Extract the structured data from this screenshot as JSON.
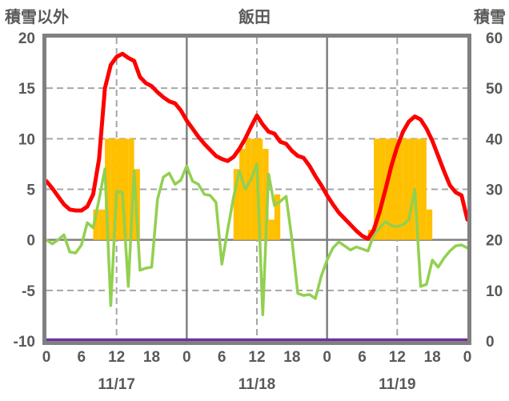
{
  "title": "飯田",
  "left_axis_label": "積雪以外",
  "right_axis_label": "積雪",
  "colors": {
    "temperature_line": "#ff0000",
    "green_line": "#92d050",
    "sunshine_bars": "#ffc000",
    "snow_line": "#7030a0",
    "axis_gray": "#808080",
    "grid_gray": "#a6a6a6",
    "text_gray": "#595959"
  },
  "chart_data": {
    "type": "line+bar",
    "title": "飯田",
    "left_axis": {
      "label": "積雪以外",
      "min": -10,
      "max": 20,
      "ticks": [
        20,
        15,
        10,
        5,
        0,
        -5,
        -10
      ]
    },
    "right_axis": {
      "label": "積雪",
      "min": 0,
      "max": 60,
      "ticks": [
        60,
        50,
        40,
        30,
        20,
        10,
        0
      ]
    },
    "x_axis": {
      "hours_total": 72,
      "hour_ticks_per_day": [
        0,
        6,
        12,
        18
      ],
      "final_tick": 0,
      "day_labels": [
        "11/17",
        "11/18",
        "11/19"
      ],
      "solid_vertical_hours": [
        24,
        48
      ],
      "dashed_vertical_hours": [
        12,
        36,
        60
      ]
    },
    "grid": {
      "horizontal_dashed": [
        15,
        10,
        5,
        -5
      ],
      "horizontal_solid": [
        0
      ]
    },
    "series": [
      {
        "name": "sunshine-bars",
        "type": "bar",
        "axis": "left",
        "color": "#ffc000",
        "values": [
          0,
          0,
          0,
          0,
          0,
          0,
          0,
          0,
          3,
          3,
          10,
          10,
          10,
          10,
          10,
          7,
          0,
          0,
          0,
          0,
          0,
          0,
          0,
          0,
          0,
          0,
          0,
          0,
          0,
          0,
          0,
          0,
          7,
          9,
          10,
          10,
          10,
          9,
          2,
          4.5,
          0,
          0,
          0,
          0,
          0,
          0,
          0,
          0,
          0,
          0,
          0,
          0,
          0,
          0,
          0,
          1,
          10,
          10,
          10,
          10,
          10,
          10,
          10,
          10,
          10,
          3,
          0,
          0,
          0,
          0,
          0,
          0
        ]
      },
      {
        "name": "green-line",
        "type": "line",
        "axis": "left",
        "color": "#92d050",
        "width": 3.5,
        "values": [
          0.0,
          -0.4,
          0.0,
          0.5,
          -1.2,
          -1.3,
          -0.5,
          1.7,
          1.2,
          4.0,
          7.0,
          -6.5,
          4.8,
          4.7,
          -4.6,
          6.8,
          -3.0,
          -2.8,
          -2.7,
          4.0,
          6.2,
          6.6,
          5.5,
          5.9,
          7.3,
          5.8,
          5.5,
          4.5,
          4.4,
          3.7,
          -2.4,
          1.0,
          4.2,
          6.8,
          5.0,
          6.0,
          7.5,
          -7.4,
          6.5,
          3.4,
          3.8,
          4.3,
          0.0,
          -5.3,
          -5.5,
          -5.4,
          -5.8,
          -3.6,
          -2.0,
          -0.8,
          -0.2,
          -0.6,
          -1.0,
          -0.7,
          -0.9,
          -1.1,
          0.5,
          1.2,
          1.8,
          1.4,
          1.3,
          1.5,
          2.0,
          5.0,
          -4.6,
          -4.4,
          -2.0,
          -2.7,
          -1.8,
          -1.1,
          -0.6,
          -0.5,
          -0.8
        ]
      },
      {
        "name": "temperature-line",
        "type": "line",
        "axis": "left",
        "color": "#ff0000",
        "width": 5,
        "values": [
          5.8,
          5.1,
          4.3,
          3.5,
          3.0,
          2.9,
          2.9,
          3.3,
          4.5,
          8.0,
          15.0,
          17.3,
          18.1,
          18.4,
          18.0,
          17.7,
          16.1,
          15.5,
          15.2,
          14.6,
          14.1,
          13.7,
          13.5,
          12.8,
          11.8,
          11.0,
          10.2,
          9.5,
          8.9,
          8.3,
          8.0,
          7.8,
          8.2,
          9.0,
          10.0,
          11.2,
          12.3,
          11.4,
          10.7,
          10.5,
          9.7,
          9.5,
          8.8,
          8.3,
          8.1,
          7.3,
          6.3,
          5.4,
          4.4,
          3.5,
          2.7,
          2.1,
          1.5,
          0.9,
          0.4,
          0.1,
          1.0,
          2.8,
          5.0,
          7.3,
          9.2,
          10.7,
          11.7,
          12.2,
          11.9,
          11.0,
          9.8,
          8.3,
          6.8,
          5.4,
          4.7,
          4.4,
          2.0
        ]
      },
      {
        "name": "snow-depth-line",
        "type": "constant-line",
        "axis": "right",
        "color": "#7030a0",
        "width": 3.5,
        "constant": 0
      }
    ]
  }
}
